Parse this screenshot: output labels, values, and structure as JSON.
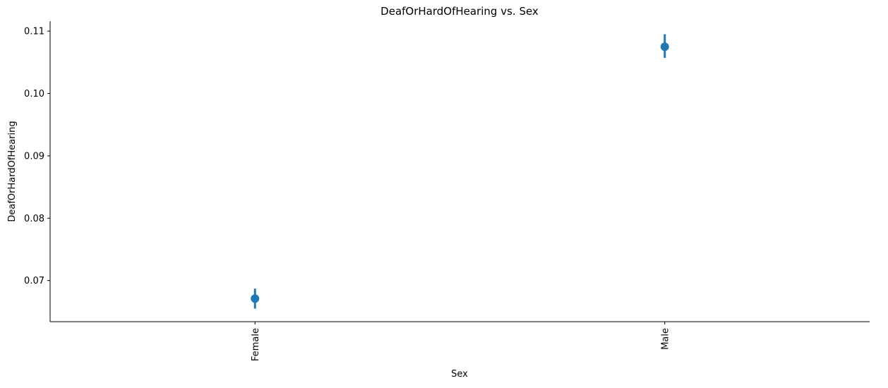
{
  "chart_data": {
    "type": "pointplot",
    "title": "DeafOrHardOfHearing vs. Sex",
    "xlabel": "Sex",
    "ylabel": "DeafOrHardOfHearing",
    "categories": [
      "Female",
      "Male"
    ],
    "series": [
      {
        "values": [
          0.0671,
          0.1075
        ],
        "ci_low": [
          0.0655,
          0.1057
        ],
        "ci_high": [
          0.0687,
          0.1095
        ]
      }
    ],
    "ylim": [
      0.0634,
      0.1116
    ],
    "yticks": [
      0.07,
      0.08,
      0.09,
      0.1,
      0.11
    ],
    "ytick_labels": [
      "0.07",
      "0.08",
      "0.09",
      "0.10",
      "0.11"
    ],
    "xtick_rotation": "vertical",
    "grid": false,
    "legend": "none",
    "colors": {
      "point": "#1f77b4",
      "axis": "#000000"
    }
  }
}
